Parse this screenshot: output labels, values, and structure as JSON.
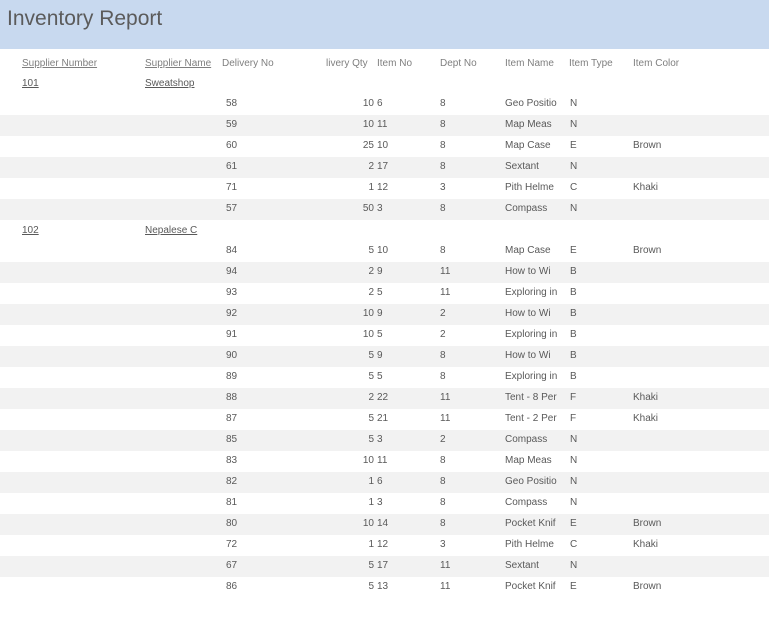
{
  "report": {
    "title": "Inventory Report",
    "colors": {
      "title_band": "#c8d9ef",
      "alt_row": "#f2f2f2",
      "text": "#595959"
    }
  },
  "columns": {
    "supplier_number": "Supplier Number",
    "supplier_name": "Supplier Name",
    "delivery_no": "Delivery No",
    "delivery_qty": "livery Qty",
    "item_no": "Item No",
    "dept_no": "Dept No",
    "item_name": "Item Name",
    "item_type": "Item Type",
    "item_color": "Item Color"
  },
  "groups": [
    {
      "supplier_number": "101",
      "supplier_name": "Sweatshop",
      "rows": [
        {
          "delivery_no": "58",
          "qty": "10",
          "item_no": "6",
          "dept_no": "8",
          "item_name": "Geo Positio",
          "item_type": "N",
          "item_color": ""
        },
        {
          "delivery_no": "59",
          "qty": "10",
          "item_no": "11",
          "dept_no": "8",
          "item_name": "Map Meas",
          "item_type": "N",
          "item_color": ""
        },
        {
          "delivery_no": "60",
          "qty": "25",
          "item_no": "10",
          "dept_no": "8",
          "item_name": "Map Case",
          "item_type": "E",
          "item_color": "Brown"
        },
        {
          "delivery_no": "61",
          "qty": "2",
          "item_no": "17",
          "dept_no": "8",
          "item_name": "Sextant",
          "item_type": "N",
          "item_color": ""
        },
        {
          "delivery_no": "71",
          "qty": "1",
          "item_no": "12",
          "dept_no": "3",
          "item_name": "Pith Helme",
          "item_type": "C",
          "item_color": "Khaki"
        },
        {
          "delivery_no": "57",
          "qty": "50",
          "item_no": "3",
          "dept_no": "8",
          "item_name": "Compass",
          "item_type": "N",
          "item_color": ""
        }
      ]
    },
    {
      "supplier_number": "102",
      "supplier_name": "Nepalese C",
      "rows": [
        {
          "delivery_no": "84",
          "qty": "5",
          "item_no": "10",
          "dept_no": "8",
          "item_name": "Map Case",
          "item_type": "E",
          "item_color": "Brown"
        },
        {
          "delivery_no": "94",
          "qty": "2",
          "item_no": "9",
          "dept_no": "11",
          "item_name": "How to Wi",
          "item_type": "B",
          "item_color": ""
        },
        {
          "delivery_no": "93",
          "qty": "2",
          "item_no": "5",
          "dept_no": "11",
          "item_name": "Exploring in",
          "item_type": "B",
          "item_color": ""
        },
        {
          "delivery_no": "92",
          "qty": "10",
          "item_no": "9",
          "dept_no": "2",
          "item_name": "How to Wi",
          "item_type": "B",
          "item_color": ""
        },
        {
          "delivery_no": "91",
          "qty": "10",
          "item_no": "5",
          "dept_no": "2",
          "item_name": "Exploring in",
          "item_type": "B",
          "item_color": ""
        },
        {
          "delivery_no": "90",
          "qty": "5",
          "item_no": "9",
          "dept_no": "8",
          "item_name": "How to Wi",
          "item_type": "B",
          "item_color": ""
        },
        {
          "delivery_no": "89",
          "qty": "5",
          "item_no": "5",
          "dept_no": "8",
          "item_name": "Exploring in",
          "item_type": "B",
          "item_color": ""
        },
        {
          "delivery_no": "88",
          "qty": "2",
          "item_no": "22",
          "dept_no": "11",
          "item_name": "Tent - 8 Per",
          "item_type": "F",
          "item_color": "Khaki"
        },
        {
          "delivery_no": "87",
          "qty": "5",
          "item_no": "21",
          "dept_no": "11",
          "item_name": "Tent - 2 Per",
          "item_type": "F",
          "item_color": "Khaki"
        },
        {
          "delivery_no": "85",
          "qty": "5",
          "item_no": "3",
          "dept_no": "2",
          "item_name": "Compass",
          "item_type": "N",
          "item_color": ""
        },
        {
          "delivery_no": "83",
          "qty": "10",
          "item_no": "11",
          "dept_no": "8",
          "item_name": "Map Meas",
          "item_type": "N",
          "item_color": ""
        },
        {
          "delivery_no": "82",
          "qty": "1",
          "item_no": "6",
          "dept_no": "8",
          "item_name": "Geo Positio",
          "item_type": "N",
          "item_color": ""
        },
        {
          "delivery_no": "81",
          "qty": "1",
          "item_no": "3",
          "dept_no": "8",
          "item_name": "Compass",
          "item_type": "N",
          "item_color": ""
        },
        {
          "delivery_no": "80",
          "qty": "10",
          "item_no": "14",
          "dept_no": "8",
          "item_name": "Pocket Knif",
          "item_type": "E",
          "item_color": "Brown"
        },
        {
          "delivery_no": "72",
          "qty": "1",
          "item_no": "12",
          "dept_no": "3",
          "item_name": "Pith Helme",
          "item_type": "C",
          "item_color": "Khaki"
        },
        {
          "delivery_no": "67",
          "qty": "5",
          "item_no": "17",
          "dept_no": "11",
          "item_name": "Sextant",
          "item_type": "N",
          "item_color": ""
        },
        {
          "delivery_no": "86",
          "qty": "5",
          "item_no": "13",
          "dept_no": "11",
          "item_name": "Pocket Knif",
          "item_type": "E",
          "item_color": "Brown"
        }
      ]
    }
  ]
}
